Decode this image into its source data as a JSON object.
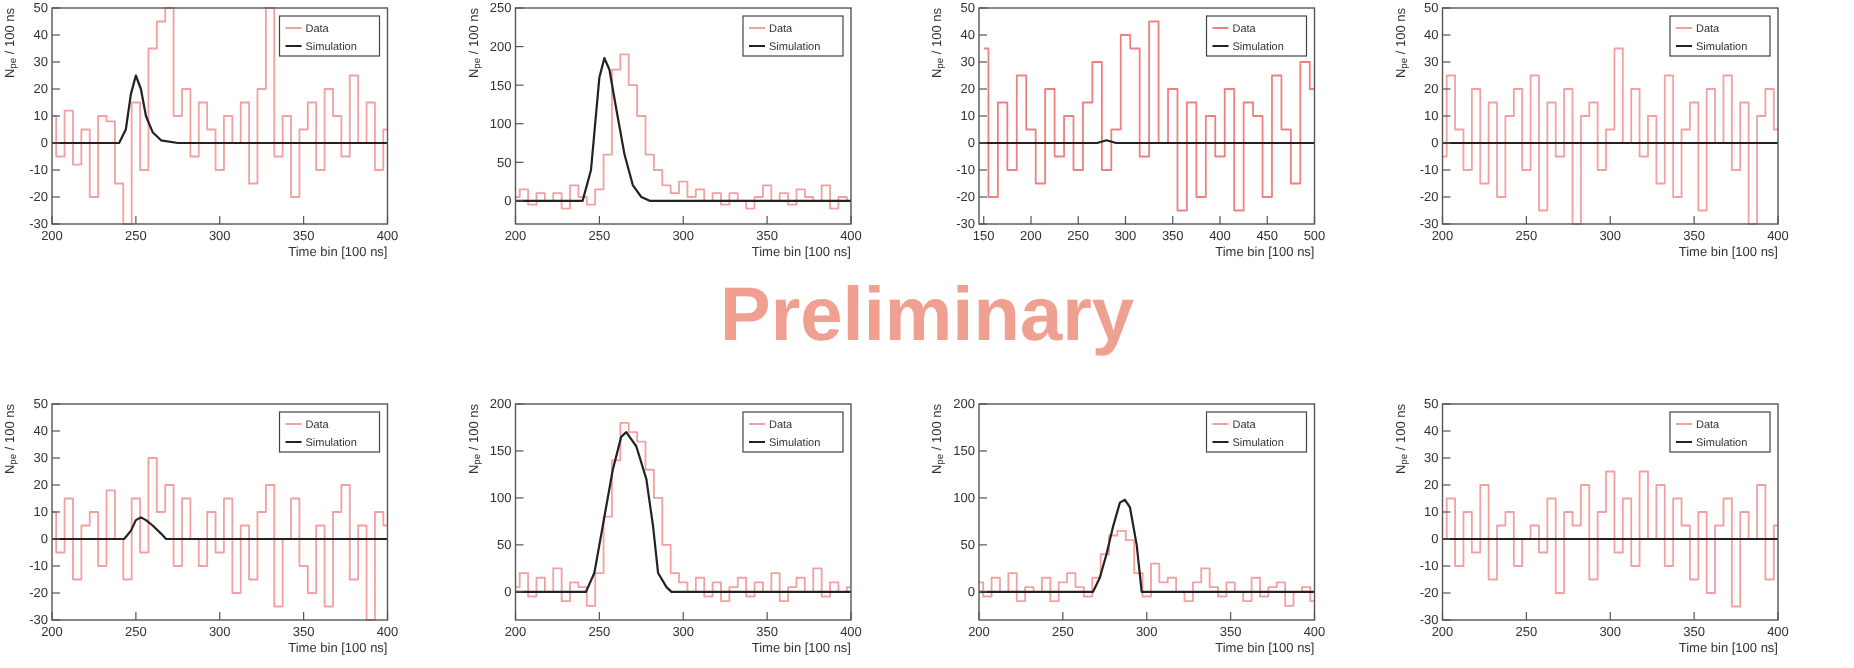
{
  "chart_data": [
    {
      "type": "step",
      "xlabel": "Time bin [100 ns]",
      "ylabel": "N$_{pe}$ / 100 ns",
      "xlim": [
        200,
        400
      ],
      "xticks": [
        200,
        250,
        300,
        350,
        400
      ],
      "ylim": [
        -30,
        50
      ],
      "yticks": [
        -30,
        -20,
        -10,
        0,
        10,
        20,
        30,
        40,
        50
      ],
      "legend": "top right",
      "annotations": [
        "Preliminary"
      ],
      "series": [
        {
          "name": "Data",
          "type": "step",
          "color": "#f4a0a0",
          "x": [
            200,
            205,
            210,
            215,
            220,
            225,
            230,
            235,
            240,
            245,
            250,
            255,
            260,
            265,
            270,
            275,
            280,
            285,
            290,
            295,
            300,
            305,
            310,
            315,
            320,
            325,
            330,
            335,
            340,
            345,
            350,
            355,
            360,
            365,
            370,
            375,
            380,
            385,
            390,
            395,
            400
          ],
          "values": [
            10,
            -5,
            12,
            -8,
            5,
            -20,
            10,
            8,
            -15,
            -30,
            15,
            -10,
            35,
            45,
            50,
            10,
            20,
            -5,
            15,
            5,
            -10,
            10,
            0,
            15,
            -15,
            20,
            50,
            -5,
            10,
            -20,
            5,
            15,
            -10,
            20,
            10,
            -5,
            25,
            0,
            15,
            -10,
            5
          ]
        },
        {
          "name": "Simulation",
          "type": "line",
          "color": "#222222",
          "x": [
            200,
            240,
            244,
            247,
            250,
            253,
            256,
            260,
            265,
            275,
            400
          ],
          "values": [
            0,
            0,
            5,
            18,
            25,
            20,
            10,
            4,
            1,
            0,
            0
          ]
        }
      ]
    },
    {
      "type": "step",
      "xlabel": "Time bin [100 ns]",
      "ylabel": "N$_{pe}$ / 100 ns",
      "xlim": [
        200,
        400
      ],
      "xticks": [
        200,
        250,
        300,
        350,
        400
      ],
      "ylim": [
        -30,
        250
      ],
      "yticks": [
        0,
        50,
        100,
        150,
        200,
        250
      ],
      "legend": "top right",
      "series": [
        {
          "name": "Data",
          "type": "step",
          "color": "#f4a0a0",
          "x": [
            200,
            205,
            210,
            215,
            220,
            225,
            230,
            235,
            240,
            245,
            250,
            255,
            260,
            265,
            270,
            275,
            280,
            285,
            290,
            295,
            300,
            305,
            310,
            315,
            320,
            325,
            330,
            335,
            340,
            345,
            350,
            355,
            360,
            365,
            370,
            375,
            380,
            385,
            390,
            395,
            400
          ],
          "values": [
            5,
            15,
            -5,
            10,
            0,
            10,
            -10,
            20,
            5,
            -5,
            15,
            60,
            170,
            190,
            150,
            110,
            60,
            40,
            20,
            10,
            25,
            5,
            15,
            0,
            10,
            -5,
            10,
            0,
            -10,
            5,
            20,
            0,
            10,
            -5,
            15,
            5,
            0,
            20,
            -10,
            5,
            0
          ]
        },
        {
          "name": "Simulation",
          "type": "line",
          "color": "#222222",
          "x": [
            200,
            240,
            245,
            250,
            253,
            256,
            260,
            265,
            270,
            275,
            280,
            400
          ],
          "values": [
            0,
            0,
            40,
            160,
            185,
            170,
            120,
            60,
            20,
            5,
            0,
            0
          ]
        }
      ]
    },
    {
      "type": "step",
      "xlabel": "Time bin [100 ns]",
      "ylabel": "N$_{pe}$ / 100 ns",
      "xlim": [
        145,
        500
      ],
      "xticks": [
        150,
        200,
        250,
        300,
        350,
        400,
        450,
        500
      ],
      "ylim": [
        -30,
        50
      ],
      "yticks": [
        -30,
        -20,
        -10,
        0,
        10,
        20,
        30,
        40,
        50
      ],
      "legend": "top right",
      "series": [
        {
          "name": "Data",
          "type": "step",
          "color": "#f08080",
          "x": [
            150,
            160,
            170,
            180,
            190,
            200,
            210,
            220,
            230,
            240,
            250,
            260,
            270,
            280,
            290,
            300,
            310,
            320,
            330,
            340,
            350,
            360,
            370,
            380,
            390,
            400,
            410,
            420,
            430,
            440,
            450,
            460,
            470,
            480,
            490,
            500
          ],
          "values": [
            35,
            -20,
            15,
            -10,
            25,
            5,
            -15,
            20,
            -5,
            10,
            -10,
            15,
            30,
            -10,
            5,
            40,
            35,
            -5,
            45,
            0,
            20,
            -25,
            15,
            -20,
            10,
            -5,
            20,
            -25,
            15,
            10,
            -20,
            25,
            5,
            -15,
            30,
            20
          ]
        },
        {
          "name": "Simulation",
          "type": "line",
          "color": "#222222",
          "x": [
            145,
            270,
            280,
            290,
            500
          ],
          "values": [
            0,
            0,
            1,
            0,
            0
          ]
        }
      ]
    },
    {
      "type": "step",
      "xlabel": "Time bin [100 ns]",
      "ylabel": "N$_{pe}$ / 100 ns",
      "xlim": [
        200,
        400
      ],
      "xticks": [
        200,
        250,
        300,
        350,
        400
      ],
      "ylim": [
        -30,
        50
      ],
      "yticks": [
        -30,
        -20,
        -10,
        0,
        10,
        20,
        30,
        40,
        50
      ],
      "legend": "top right",
      "series": [
        {
          "name": "Data",
          "type": "step",
          "color": "#f4a0a0",
          "x": [
            200,
            205,
            210,
            215,
            220,
            225,
            230,
            235,
            240,
            245,
            250,
            255,
            260,
            265,
            270,
            275,
            280,
            285,
            290,
            295,
            300,
            305,
            310,
            315,
            320,
            325,
            330,
            335,
            340,
            345,
            350,
            355,
            360,
            365,
            370,
            375,
            380,
            385,
            390,
            395,
            400
          ],
          "values": [
            -5,
            25,
            5,
            -10,
            20,
            -15,
            15,
            -20,
            10,
            20,
            -10,
            25,
            -25,
            15,
            -5,
            20,
            -30,
            10,
            15,
            -10,
            5,
            35,
            0,
            20,
            -5,
            10,
            -15,
            25,
            -20,
            5,
            15,
            -25,
            20,
            0,
            25,
            -10,
            15,
            -30,
            10,
            20,
            5
          ]
        },
        {
          "name": "Simulation",
          "type": "line",
          "color": "#222222",
          "x": [
            200,
            400
          ],
          "values": [
            0,
            0
          ]
        }
      ]
    },
    {
      "type": "step",
      "xlabel": "Time bin [100 ns]",
      "ylabel": "N$_{pe}$ / 100 ns",
      "xlim": [
        200,
        400
      ],
      "xticks": [
        200,
        250,
        300,
        350,
        400
      ],
      "ylim": [
        -30,
        50
      ],
      "yticks": [
        -30,
        -20,
        -10,
        0,
        10,
        20,
        30,
        40,
        50
      ],
      "legend": "top right",
      "series": [
        {
          "name": "Data",
          "type": "step",
          "color": "#f4a0a0",
          "x": [
            200,
            205,
            210,
            215,
            220,
            225,
            230,
            235,
            240,
            245,
            250,
            255,
            260,
            265,
            270,
            275,
            280,
            285,
            290,
            295,
            300,
            305,
            310,
            315,
            320,
            325,
            330,
            335,
            340,
            345,
            350,
            355,
            360,
            365,
            370,
            375,
            380,
            385,
            390,
            395,
            400
          ],
          "values": [
            10,
            -5,
            15,
            -15,
            5,
            10,
            -10,
            18,
            0,
            -15,
            15,
            -5,
            30,
            10,
            20,
            -10,
            15,
            0,
            -10,
            10,
            -5,
            15,
            -20,
            5,
            -15,
            10,
            20,
            -25,
            0,
            15,
            -10,
            -20,
            5,
            -25,
            10,
            20,
            -15,
            5,
            -30,
            10,
            5
          ]
        },
        {
          "name": "Simulation",
          "type": "line",
          "color": "#222222",
          "x": [
            200,
            243,
            247,
            250,
            253,
            256,
            260,
            265,
            268,
            400
          ],
          "values": [
            0,
            0,
            3,
            7,
            8,
            7,
            5,
            2,
            0,
            0
          ]
        }
      ]
    },
    {
      "type": "step",
      "xlabel": "Time bin [100 ns]",
      "ylabel": "N$_{pe}$ / 100 ns",
      "xlim": [
        200,
        400
      ],
      "xticks": [
        200,
        250,
        300,
        350,
        400
      ],
      "ylim": [
        -30,
        200
      ],
      "yticks": [
        0,
        50,
        100,
        150,
        200
      ],
      "legend": "top right",
      "series": [
        {
          "name": "Data",
          "type": "step",
          "color": "#f4a0a0",
          "x": [
            200,
            205,
            210,
            215,
            220,
            225,
            230,
            235,
            240,
            245,
            250,
            255,
            260,
            265,
            270,
            275,
            280,
            285,
            290,
            295,
            300,
            305,
            310,
            315,
            320,
            325,
            330,
            335,
            340,
            345,
            350,
            355,
            360,
            365,
            370,
            375,
            380,
            385,
            390,
            395,
            400
          ],
          "values": [
            5,
            20,
            -5,
            15,
            0,
            25,
            -10,
            10,
            5,
            -15,
            20,
            80,
            140,
            180,
            170,
            160,
            130,
            100,
            50,
            20,
            10,
            0,
            15,
            -5,
            10,
            -10,
            5,
            15,
            -5,
            10,
            0,
            20,
            -10,
            5,
            15,
            0,
            25,
            -5,
            10,
            0,
            5
          ]
        },
        {
          "name": "Simulation",
          "type": "line",
          "color": "#222222",
          "x": [
            200,
            242,
            247,
            252,
            258,
            263,
            266,
            272,
            278,
            282,
            285,
            290,
            293,
            400
          ],
          "values": [
            0,
            0,
            20,
            70,
            130,
            165,
            170,
            155,
            120,
            70,
            20,
            5,
            0,
            0
          ]
        }
      ]
    },
    {
      "type": "step",
      "xlabel": "Time bin [100 ns]",
      "ylabel": "N$_{pe}$ / 100 ns",
      "xlim": [
        200,
        400
      ],
      "xticks": [
        200,
        250,
        300,
        350,
        400
      ],
      "ylim": [
        -30,
        200
      ],
      "yticks": [
        0,
        50,
        100,
        150,
        200
      ],
      "legend": "top right",
      "series": [
        {
          "name": "Data",
          "type": "step",
          "color": "#f4a0a0",
          "x": [
            200,
            205,
            210,
            215,
            220,
            225,
            230,
            235,
            240,
            245,
            250,
            255,
            260,
            265,
            270,
            275,
            280,
            285,
            290,
            295,
            300,
            305,
            310,
            315,
            320,
            325,
            330,
            335,
            340,
            345,
            350,
            355,
            360,
            365,
            370,
            375,
            380,
            385,
            390,
            395,
            400
          ],
          "values": [
            10,
            -5,
            15,
            0,
            20,
            -10,
            5,
            0,
            15,
            -10,
            10,
            20,
            5,
            -5,
            15,
            40,
            60,
            65,
            55,
            20,
            -5,
            30,
            10,
            15,
            0,
            -10,
            10,
            25,
            5,
            -5,
            10,
            0,
            -10,
            15,
            -5,
            5,
            10,
            -15,
            0,
            5,
            -10
          ]
        },
        {
          "name": "Simulation",
          "type": "line",
          "color": "#222222",
          "x": [
            200,
            268,
            272,
            276,
            280,
            284,
            287,
            290,
            294,
            297,
            400
          ],
          "values": [
            0,
            0,
            15,
            40,
            70,
            95,
            98,
            90,
            50,
            0,
            0
          ]
        }
      ]
    },
    {
      "type": "step",
      "xlabel": "Time bin [100 ns]",
      "ylabel": "N$_{pe}$ / 100 ns",
      "xlim": [
        200,
        400
      ],
      "xticks": [
        200,
        250,
        300,
        350,
        400
      ],
      "ylim": [
        -30,
        50
      ],
      "yticks": [
        -30,
        -20,
        -10,
        0,
        10,
        20,
        30,
        40,
        50
      ],
      "legend": "top right",
      "series": [
        {
          "name": "Data",
          "type": "step",
          "color": "#f4a0a0",
          "x": [
            200,
            205,
            210,
            215,
            220,
            225,
            230,
            235,
            240,
            245,
            250,
            255,
            260,
            265,
            270,
            275,
            280,
            285,
            290,
            295,
            300,
            305,
            310,
            315,
            320,
            325,
            330,
            335,
            340,
            345,
            350,
            355,
            360,
            365,
            370,
            375,
            380,
            385,
            390,
            395,
            400
          ],
          "values": [
            0,
            15,
            -10,
            10,
            -5,
            20,
            -15,
            5,
            10,
            -10,
            0,
            5,
            -5,
            15,
            -20,
            10,
            5,
            20,
            -15,
            10,
            25,
            -5,
            15,
            -10,
            25,
            0,
            20,
            -10,
            15,
            5,
            -15,
            10,
            -20,
            5,
            15,
            -25,
            10,
            0,
            20,
            -15,
            5
          ]
        },
        {
          "name": "Simulation",
          "type": "line",
          "color": "#222222",
          "x": [
            200,
            400
          ],
          "values": [
            0,
            0
          ]
        }
      ]
    }
  ]
}
